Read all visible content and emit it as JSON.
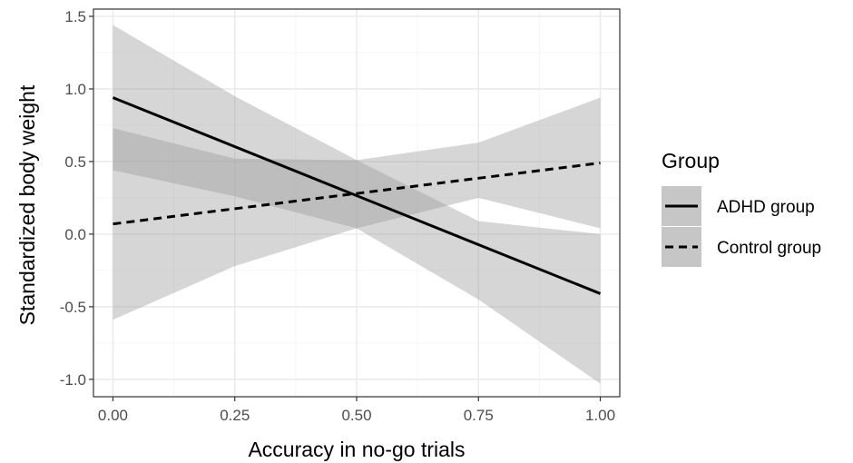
{
  "chart_data": {
    "type": "line",
    "xlabel": "Accuracy in no-go trials",
    "ylabel": "Standardized body weight",
    "xlim": [
      -0.04,
      1.04
    ],
    "ylim": [
      -1.12,
      1.55
    ],
    "x_ticks": [
      0.0,
      0.25,
      0.5,
      0.75,
      1.0
    ],
    "x_tick_labels": [
      "0.00",
      "0.25",
      "0.50",
      "0.75",
      "1.00"
    ],
    "y_ticks": [
      1.5,
      1.0,
      0.5,
      0.0,
      -0.5,
      -1.0
    ],
    "y_tick_labels": [
      "1.5",
      "1.0",
      "0.5",
      "0.0",
      "-0.5",
      "-1.0"
    ],
    "grid": true,
    "legend": {
      "title": "Group",
      "position": "right"
    },
    "series": [
      {
        "name": "ADHD group",
        "line_style": "solid",
        "x": [
          0,
          1
        ],
        "y": [
          0.94,
          -0.41
        ],
        "ci": {
          "x": [
            0,
            0.25,
            0.5,
            0.75,
            1.0
          ],
          "lower": [
            0.44,
            0.26,
            0.04,
            -0.45,
            -1.03
          ],
          "upper": [
            1.44,
            0.95,
            0.51,
            0.09,
            -0.0
          ]
        }
      },
      {
        "name": "Control group",
        "line_style": "dashed",
        "x": [
          0,
          1
        ],
        "y": [
          0.07,
          0.49
        ],
        "ci": {
          "x": [
            0,
            0.25,
            0.5,
            0.75,
            1.0
          ],
          "lower": [
            -0.59,
            -0.22,
            0.04,
            0.25,
            0.04
          ],
          "upper": [
            0.73,
            0.52,
            0.51,
            0.63,
            0.94
          ]
        }
      }
    ],
    "colors": {
      "line": "#000000",
      "ribbon": "#999999",
      "grid_major": "#ebebeb",
      "grid_minor": "#f5f5f5",
      "panel_border": "#333333",
      "legend_key_bg": "#e5e5e5"
    }
  }
}
